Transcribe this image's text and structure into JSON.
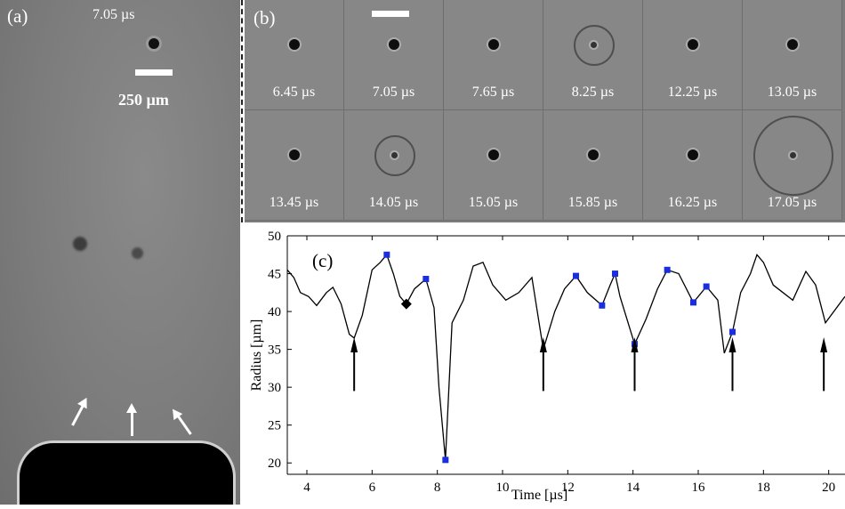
{
  "panel_a": {
    "label": "(a)",
    "time_label": "7.05 µs",
    "scale_label": "250 µm"
  },
  "panel_b": {
    "label": "(b)",
    "frames": [
      {
        "time": "6.45 µs",
        "ring": false
      },
      {
        "time": "7.05 µs",
        "ring": false
      },
      {
        "time": "7.65 µs",
        "ring": false
      },
      {
        "time": "8.25 µs",
        "ring": true
      },
      {
        "time": "12.25 µs",
        "ring": false
      },
      {
        "time": "13.05 µs",
        "ring": false
      },
      {
        "time": "13.45 µs",
        "ring": false
      },
      {
        "time": "14.05 µs",
        "ring": true
      },
      {
        "time": "15.05 µs",
        "ring": false
      },
      {
        "time": "15.85 µs",
        "ring": false
      },
      {
        "time": "16.25 µs",
        "ring": false
      },
      {
        "time": "17.05 µs",
        "ring": true
      }
    ]
  },
  "chart_data": {
    "type": "line",
    "panel_label": "(c)",
    "xlabel": "Time [µs]",
    "ylabel": "Radius [µm]",
    "xlim": [
      3.4,
      20.5
    ],
    "ylim": [
      18.5,
      50
    ],
    "xticks": [
      4,
      6,
      8,
      10,
      12,
      14,
      16,
      18,
      20
    ],
    "yticks": [
      20,
      25,
      30,
      35,
      40,
      45,
      50
    ],
    "grid": false,
    "line_color": "#000000",
    "marker_color": "#1a2ee0",
    "series": [
      {
        "x": [
          3.4,
          3.6,
          3.8,
          4.05,
          4.3,
          4.6,
          4.8,
          5.05,
          5.3,
          5.45,
          5.7,
          6.0,
          6.25,
          6.45,
          6.65,
          6.85,
          7.05,
          7.3,
          7.65,
          7.9,
          8.05,
          8.25,
          8.45,
          8.8,
          9.1,
          9.4,
          9.7,
          10.1,
          10.5,
          10.9,
          11.25,
          11.6,
          11.9,
          12.25,
          12.6,
          13.05,
          13.3,
          13.45,
          13.6,
          14.05,
          14.4,
          14.75,
          15.05,
          15.4,
          15.85,
          16.25,
          16.6,
          16.8,
          17.05,
          17.3,
          17.6,
          17.8,
          18.0,
          18.3,
          18.6,
          18.9,
          19.3,
          19.6,
          19.9,
          20.5
        ],
        "y": [
          45.5,
          44.5,
          42.5,
          42.0,
          40.8,
          42.5,
          43.2,
          41.0,
          37.0,
          36.5,
          39.5,
          45.5,
          46.5,
          47.5,
          45.0,
          42.0,
          41.0,
          43.0,
          44.3,
          40.5,
          30.0,
          20.4,
          38.5,
          41.5,
          46.0,
          46.5,
          43.5,
          41.5,
          42.5,
          44.5,
          35.0,
          40.0,
          43.0,
          44.7,
          42.5,
          40.8,
          43.5,
          45.0,
          42.0,
          35.7,
          39.0,
          43.0,
          45.5,
          45.0,
          41.2,
          43.3,
          41.5,
          34.5,
          37.3,
          42.5,
          45.0,
          47.5,
          46.5,
          43.5,
          42.5,
          41.5,
          45.3,
          43.5,
          38.5,
          42.0
        ]
      }
    ],
    "markers": [
      {
        "x": 6.45,
        "y": 47.5
      },
      {
        "x": 7.65,
        "y": 44.3
      },
      {
        "x": 8.25,
        "y": 20.4
      },
      {
        "x": 12.25,
        "y": 44.7
      },
      {
        "x": 13.05,
        "y": 40.8
      },
      {
        "x": 13.45,
        "y": 45.0
      },
      {
        "x": 14.05,
        "y": 35.7
      },
      {
        "x": 15.05,
        "y": 45.5
      },
      {
        "x": 15.85,
        "y": 41.2
      },
      {
        "x": 16.25,
        "y": 43.3
      },
      {
        "x": 17.05,
        "y": 37.3
      }
    ],
    "diamond": {
      "x": 7.05,
      "y": 41.0
    },
    "arrows_at_x": [
      5.45,
      11.25,
      14.05,
      17.05,
      19.85
    ]
  }
}
